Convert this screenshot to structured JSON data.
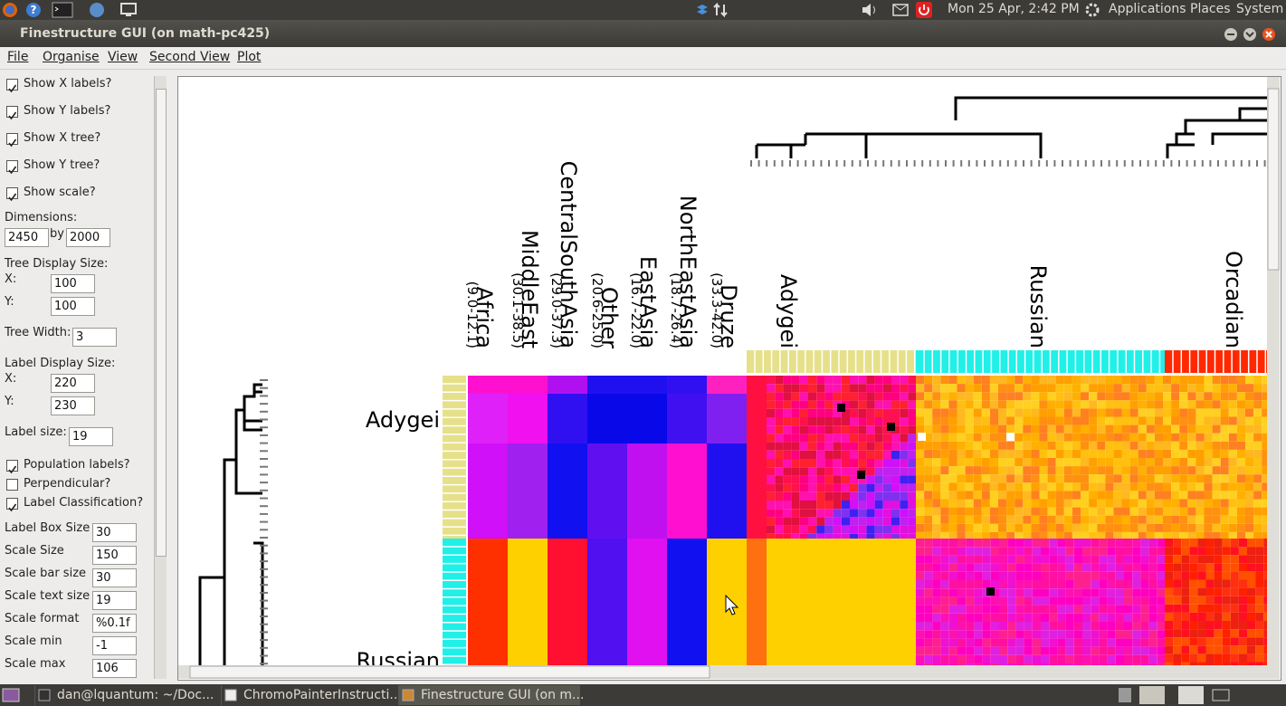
{
  "top_panel": {
    "clock": "Mon 25 Apr,  2:42 PM",
    "menus": [
      "Applications",
      "Places",
      "System"
    ]
  },
  "window": {
    "title": "Finestructure GUI (on math-pc425)",
    "menu": [
      "File",
      "Organise",
      "View",
      "Second View",
      "Plot"
    ]
  },
  "sidebar": {
    "checks": [
      {
        "label": "Show X labels?",
        "checked": true
      },
      {
        "label": "Show Y labels?",
        "checked": true
      },
      {
        "label": "Show X tree?",
        "checked": true
      },
      {
        "label": "Show Y tree?",
        "checked": true
      },
      {
        "label": "Show scale?",
        "checked": true
      }
    ],
    "dimensions": {
      "label": "Dimensions:",
      "x": "2450",
      "by": "by",
      "y": "2000"
    },
    "tree_display_size": {
      "label": "Tree Display Size:",
      "x_label": "X:",
      "x": "100",
      "y_label": "Y:",
      "y": "100"
    },
    "tree_width": {
      "label": "Tree Width:",
      "value": "3"
    },
    "label_display_size": {
      "label": "Label Display Size:",
      "x_label": "X:",
      "x": "220",
      "y_label": "Y:",
      "y": "230"
    },
    "label_size": {
      "label": "Label size:",
      "value": "19"
    },
    "checks2": [
      {
        "label": "Population labels?",
        "checked": true
      },
      {
        "label": "Perpendicular?",
        "checked": false
      },
      {
        "label": "Label Classification?",
        "checked": true
      }
    ],
    "fields": [
      {
        "label": "Label Box Size",
        "value": "30"
      },
      {
        "label": "Scale Size",
        "value": "150"
      },
      {
        "label": "Scale bar size",
        "value": "30"
      },
      {
        "label": "Scale text size",
        "value": "19"
      },
      {
        "label": "Scale format",
        "value": "%0.1f"
      },
      {
        "label": "Scale min",
        "value": "-1"
      },
      {
        "label": "Scale max",
        "value": "106"
      }
    ]
  },
  "plot": {
    "columns": [
      {
        "name": "Africa",
        "range": "(9.0-12.1)"
      },
      {
        "name": "MiddleEast",
        "range": "(30.1-38.5)"
      },
      {
        "name": "CentralSouthAsia",
        "range": "(29.0-37.3)"
      },
      {
        "name": "Other",
        "range": "(20.6-25.0)"
      },
      {
        "name": "EastAsia",
        "range": "(16.7-22.0)"
      },
      {
        "name": "NorthEastAsia",
        "range": "(18.7-26.4)"
      },
      {
        "name": "Druze",
        "range": "(33.3-42.0)"
      }
    ],
    "x_populations": [
      "Adygei",
      "Russian",
      "Orcadian"
    ],
    "y_populations": [
      "Adygei",
      "Russian"
    ]
  },
  "taskbar": [
    "dan@lquantum: ~/Doc...",
    "ChromoPainterInstructi...",
    "Finestructure GUI (on m..."
  ]
}
